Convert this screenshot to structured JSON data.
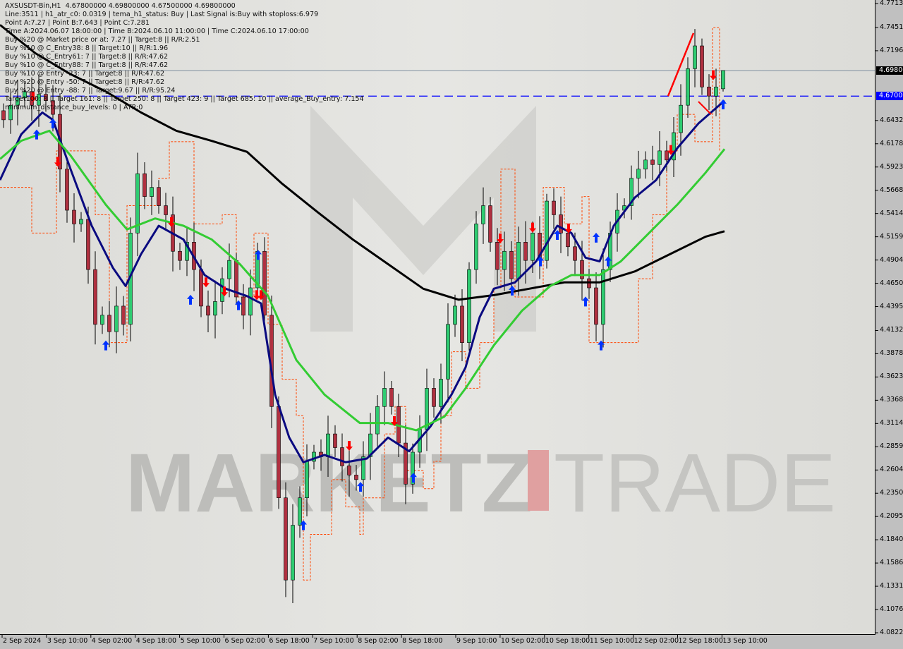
{
  "header": {
    "lines": [
      "AXSUSDT-Bin,H1  4.67800000 4.69800000 4.67500000 4.69800000",
      "Line:3511 | h1_atr_c0: 0.0319 | tema_h1_status: Buy | Last Signal is:Buy with stoploss:6.979",
      "Point A:7.27 | Point B:7.643 | Point C:7.281",
      "Time A:2024.06.07 18:00:00 | Time B:2024.06.10 11:00:00 | Time C:2024.06.10 17:00:00",
      "Buy %20 @ Market price or at: 7.27 || Target:8 || R/R:2.51",
      "Buy %10 @ C_Entry38: 8 || Target:10 || R/R:1.96",
      "Buy %10 @ C_Entry61: 7 || Target:8 || R/R:47.62",
      "Buy %10 @ C_Entry88: 7 || Target:8 || R/R:47.62",
      "Buy %10 @ Entry -23: 7 || Target:8 || R/R:47.62",
      "Buy %20 @ Entry -50: 7 || Target:8 || R/R:47.62",
      "Buy %20 @ Entry -88: 7 || Target:9.67 || R/R:95.24",
      "Target100: 8 || Target 161: 8 || Target 250: 8 || Target 423: 9 || Target 685: 10 || average_Buy_entry: 7.154",
      "minimum_distance_buy_levels: 0 | ATR:0"
    ]
  },
  "watermark": {
    "left": "MARKETZ",
    "right": "TRADE"
  },
  "chart_data": {
    "type": "candlestick",
    "symbol": "AXSUSDT-Bin",
    "timeframe": "H1",
    "ylim": [
      4.08221,
      4.77138
    ],
    "y_ticks": [
      "4.77138",
      "4.74514",
      "4.71968",
      "4.64327",
      "4.61780",
      "4.59234",
      "4.56687",
      "4.54140",
      "4.51593",
      "4.49047",
      "4.46500",
      "4.43953",
      "4.41329",
      "4.38782",
      "4.36236",
      "4.33689",
      "4.31142",
      "4.28595",
      "4.26048",
      "4.23502",
      "4.20955",
      "4.18408",
      "4.15861",
      "4.13315",
      "4.10768",
      "4.08221"
    ],
    "x_ticks": [
      "2 Sep 2024",
      "3 Sep 10:00",
      "4 Sep 02:00",
      "4 Sep 18:00",
      "5 Sep 10:00",
      "6 Sep 02:00",
      "6 Sep 18:00",
      "7 Sep 10:00",
      "8 Sep 02:00",
      "8 Sep 18:00",
      "9 Sep 10:00",
      "10 Sep 02:00",
      "10 Sep 18:00",
      "11 Sep 10:00",
      "12 Sep 02:00",
      "12 Sep 18:00",
      "13 Sep 10:00"
    ],
    "closes": [
      4.644,
      4.66,
      4.668,
      4.675,
      4.66,
      4.672,
      4.665,
      4.65,
      4.59,
      4.545,
      4.53,
      4.535,
      4.48,
      4.42,
      4.43,
      4.412,
      4.44,
      4.42,
      4.52,
      4.585,
      4.56,
      4.57,
      4.55,
      4.54,
      4.5,
      4.49,
      4.51,
      4.48,
      4.44,
      4.43,
      4.445,
      4.47,
      4.49,
      4.45,
      4.43,
      4.46,
      4.5,
      4.43,
      4.33,
      4.23,
      4.14,
      4.2,
      4.23,
      4.27,
      4.28,
      4.275,
      4.3,
      4.285,
      4.265,
      4.255,
      4.25,
      4.275,
      4.3,
      4.33,
      4.35,
      4.33,
      4.29,
      4.245,
      4.28,
      4.305,
      4.35,
      4.33,
      4.36,
      4.42,
      4.44,
      4.4,
      4.48,
      4.53,
      4.55,
      4.51,
      4.48,
      4.5,
      4.47,
      4.51,
      4.49,
      4.52,
      4.49,
      4.555,
      4.54,
      4.52,
      4.505,
      4.49,
      4.47,
      4.46,
      4.42,
      4.48,
      4.52,
      4.545,
      4.55,
      4.58,
      4.59,
      4.6,
      4.595,
      4.61,
      4.6,
      4.63,
      4.66,
      4.7,
      4.725,
      4.68,
      4.67,
      4.68,
      4.698
    ],
    "last_bar": {
      "open": 4.678,
      "high": 4.698,
      "low": 4.675,
      "close": 4.698
    },
    "current_price": "4.69800",
    "level_line": "4.67000",
    "colors": {
      "up": "#2ecc71",
      "down": "#b03040",
      "ma_slow": "#000000",
      "ma_fast": "#0a0a80",
      "ma_mid": "#33cc33",
      "stop": "#ff4400",
      "buy": "#0033ff",
      "sell": "#ff0000",
      "level": "#0000ff"
    },
    "series": [
      {
        "key": "ma_slow",
        "points": [
          [
            0,
            4.748
          ],
          [
            50,
            4.717
          ],
          [
            100,
            4.694
          ],
          [
            150,
            4.675
          ],
          [
            200,
            4.652
          ],
          [
            250,
            4.632
          ],
          [
            300,
            4.621
          ],
          [
            350,
            4.609
          ],
          [
            400,
            4.574
          ],
          [
            450,
            4.543
          ],
          [
            500,
            4.513
          ],
          [
            550,
            4.486
          ],
          [
            600,
            4.459
          ],
          [
            650,
            4.447
          ],
          [
            700,
            4.452
          ],
          [
            750,
            4.459
          ],
          [
            800,
            4.466
          ],
          [
            850,
            4.466
          ],
          [
            900,
            4.478
          ],
          [
            950,
            4.497
          ],
          [
            1000,
            4.516
          ],
          [
            1027,
            4.522
          ]
        ]
      },
      {
        "key": "ma_fast",
        "points": [
          [
            0,
            4.578
          ],
          [
            30,
            4.628
          ],
          [
            60,
            4.652
          ],
          [
            75,
            4.644
          ],
          [
            100,
            4.59
          ],
          [
            130,
            4.528
          ],
          [
            160,
            4.482
          ],
          [
            178,
            4.462
          ],
          [
            200,
            4.497
          ],
          [
            225,
            4.528
          ],
          [
            260,
            4.513
          ],
          [
            290,
            4.474
          ],
          [
            320,
            4.459
          ],
          [
            350,
            4.451
          ],
          [
            370,
            4.443
          ],
          [
            390,
            4.343
          ],
          [
            410,
            4.296
          ],
          [
            430,
            4.269
          ],
          [
            460,
            4.277
          ],
          [
            490,
            4.269
          ],
          [
            520,
            4.273
          ],
          [
            550,
            4.296
          ],
          [
            580,
            4.281
          ],
          [
            610,
            4.308
          ],
          [
            640,
            4.343
          ],
          [
            660,
            4.373
          ],
          [
            680,
            4.428
          ],
          [
            700,
            4.459
          ],
          [
            730,
            4.466
          ],
          [
            760,
            4.489
          ],
          [
            790,
            4.528
          ],
          [
            810,
            4.52
          ],
          [
            830,
            4.493
          ],
          [
            850,
            4.489
          ],
          [
            870,
            4.528
          ],
          [
            900,
            4.559
          ],
          [
            930,
            4.578
          ],
          [
            960,
            4.613
          ],
          [
            990,
            4.64
          ],
          [
            1027,
            4.665
          ]
        ]
      },
      {
        "key": "ma_mid",
        "points": [
          [
            0,
            4.601
          ],
          [
            30,
            4.621
          ],
          [
            70,
            4.632
          ],
          [
            100,
            4.605
          ],
          [
            150,
            4.551
          ],
          [
            180,
            4.524
          ],
          [
            220,
            4.536
          ],
          [
            260,
            4.528
          ],
          [
            300,
            4.513
          ],
          [
            340,
            4.486
          ],
          [
            380,
            4.451
          ],
          [
            420,
            4.381
          ],
          [
            460,
            4.343
          ],
          [
            510,
            4.312
          ],
          [
            550,
            4.312
          ],
          [
            590,
            4.304
          ],
          [
            630,
            4.319
          ],
          [
            660,
            4.35
          ],
          [
            700,
            4.397
          ],
          [
            740,
            4.435
          ],
          [
            780,
            4.462
          ],
          [
            810,
            4.474
          ],
          [
            850,
            4.474
          ],
          [
            880,
            4.489
          ],
          [
            920,
            4.52
          ],
          [
            960,
            4.551
          ],
          [
            1000,
            4.586
          ],
          [
            1027,
            4.612
          ]
        ]
      },
      {
        "key": "stop",
        "points": [
          [
            0,
            4.57
          ],
          [
            35,
            4.57
          ],
          [
            45,
            4.52
          ],
          [
            75,
            4.52
          ],
          [
            80,
            4.61
          ],
          [
            115,
            4.61
          ],
          [
            125,
            4.61
          ],
          [
            135,
            4.54
          ],
          [
            155,
            4.4
          ],
          [
            175,
            4.4
          ],
          [
            180,
            4.55
          ],
          [
            215,
            4.55
          ],
          [
            225,
            4.58
          ],
          [
            240,
            4.62
          ],
          [
            265,
            4.62
          ],
          [
            275,
            4.53
          ],
          [
            300,
            4.53
          ],
          [
            315,
            4.54
          ],
          [
            330,
            4.54
          ],
          [
            335,
            4.45
          ],
          [
            350,
            4.45
          ],
          [
            360,
            4.52
          ],
          [
            380,
            4.42
          ],
          [
            400,
            4.36
          ],
          [
            420,
            4.32
          ],
          [
            430,
            4.14
          ],
          [
            440,
            4.19
          ],
          [
            470,
            4.25
          ],
          [
            490,
            4.22
          ],
          [
            510,
            4.19
          ],
          [
            515,
            4.23
          ],
          [
            530,
            4.23
          ],
          [
            545,
            4.3
          ],
          [
            560,
            4.33
          ],
          [
            575,
            4.26
          ],
          [
            600,
            4.24
          ],
          [
            615,
            4.27
          ],
          [
            625,
            4.32
          ],
          [
            640,
            4.39
          ],
          [
            660,
            4.35
          ],
          [
            680,
            4.4
          ],
          [
            700,
            4.46
          ],
          [
            710,
            4.59
          ],
          [
            730,
            4.45
          ],
          [
            760,
            4.45
          ],
          [
            770,
            4.57
          ],
          [
            800,
            4.53
          ],
          [
            825,
            4.56
          ],
          [
            835,
            4.4
          ],
          [
            850,
            4.4
          ],
          [
            885,
            4.4
          ],
          [
            905,
            4.47
          ],
          [
            925,
            4.54
          ],
          [
            945,
            4.61
          ],
          [
            960,
            4.65
          ],
          [
            985,
            4.62
          ],
          [
            1005,
            4.62
          ],
          [
            1010,
            4.745
          ],
          [
            1020,
            4.61
          ]
        ]
      }
    ],
    "arrows": [
      {
        "type": "buy",
        "x": 52,
        "price": 4.628
      },
      {
        "type": "buy",
        "x": 75,
        "price": 4.64
      },
      {
        "type": "buy",
        "x": 150,
        "price": 4.397
      },
      {
        "type": "buy",
        "x": 270,
        "price": 4.447
      },
      {
        "type": "buy",
        "x": 338,
        "price": 4.441
      },
      {
        "type": "buy",
        "x": 366,
        "price": 4.496
      },
      {
        "type": "buy",
        "x": 430,
        "price": 4.2
      },
      {
        "type": "buy",
        "x": 511,
        "price": 4.242
      },
      {
        "type": "buy",
        "x": 586,
        "price": 4.252
      },
      {
        "type": "buy",
        "x": 726,
        "price": 4.457
      },
      {
        "type": "buy",
        "x": 766,
        "price": 4.489
      },
      {
        "type": "buy",
        "x": 790,
        "price": 4.518
      },
      {
        "type": "buy",
        "x": 830,
        "price": 4.445
      },
      {
        "type": "buy",
        "x": 845,
        "price": 4.515
      },
      {
        "type": "buy",
        "x": 852,
        "price": 4.397
      },
      {
        "type": "buy",
        "x": 862,
        "price": 4.489
      },
      {
        "type": "buy",
        "x": 1025,
        "price": 4.661
      },
      {
        "type": "sell",
        "x": 47,
        "price": 4.669
      },
      {
        "type": "sell",
        "x": 82,
        "price": 4.598
      },
      {
        "type": "sell",
        "x": 243,
        "price": 4.532
      },
      {
        "type": "sell",
        "x": 292,
        "price": 4.466
      },
      {
        "type": "sell",
        "x": 318,
        "price": 4.456
      },
      {
        "type": "sell",
        "x": 364,
        "price": 4.452
      },
      {
        "type": "sell",
        "x": 370,
        "price": 4.452
      },
      {
        "type": "sell",
        "x": 495,
        "price": 4.287
      },
      {
        "type": "sell",
        "x": 559,
        "price": 4.314
      },
      {
        "type": "sell",
        "x": 709,
        "price": 4.514
      },
      {
        "type": "sell",
        "x": 755,
        "price": 4.526
      },
      {
        "type": "sell",
        "x": 806,
        "price": 4.525
      },
      {
        "type": "sell",
        "x": 951,
        "price": 4.611
      },
      {
        "type": "sell",
        "x": 1011,
        "price": 4.693
      }
    ],
    "zigzag": [
      [
        947,
        4.67
      ],
      [
        983,
        4.739
      ],
      [
        990,
        4.664
      ],
      [
        1008,
        4.65
      ]
    ]
  }
}
